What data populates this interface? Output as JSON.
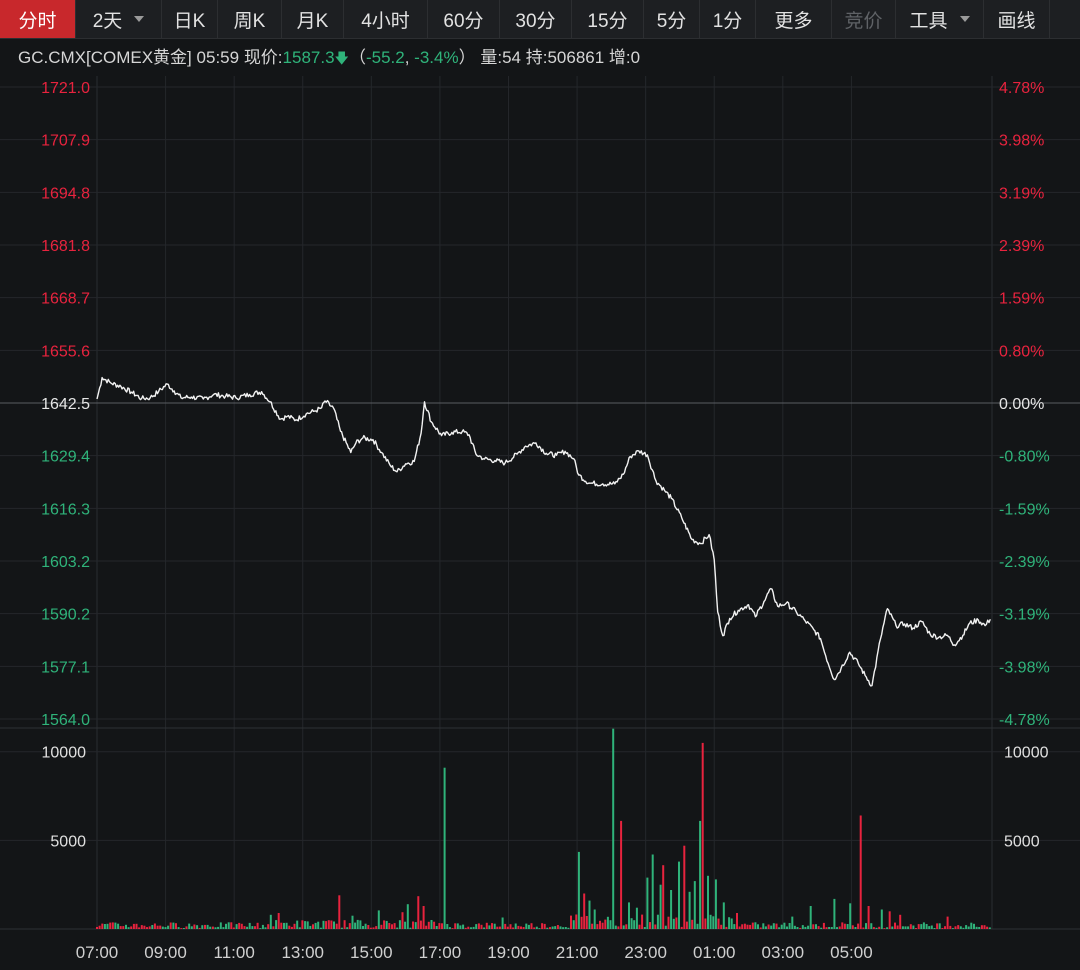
{
  "toolbar": {
    "tabs": [
      {
        "label": "分时",
        "state": "active"
      },
      {
        "label": "2天",
        "state": "dropdown"
      },
      {
        "label": "日K",
        "state": "normal"
      },
      {
        "label": "周K",
        "state": "normal"
      },
      {
        "label": "月K",
        "state": "normal"
      },
      {
        "label": "4小时",
        "state": "normal"
      },
      {
        "label": "60分",
        "state": "normal"
      },
      {
        "label": "30分",
        "state": "normal"
      },
      {
        "label": "15分",
        "state": "normal"
      },
      {
        "label": "5分",
        "state": "normal"
      },
      {
        "label": "1分",
        "state": "normal"
      },
      {
        "label": "更多",
        "state": "normal"
      },
      {
        "label": "竞价",
        "state": "disabled"
      },
      {
        "label": "工具",
        "state": "dropdown"
      },
      {
        "label": "画线",
        "state": "normal"
      }
    ]
  },
  "info": {
    "symbol": "GC.CMX[COMEX黄金]",
    "time": "05:59",
    "price_label": "现价:",
    "price": "1587.3",
    "change_open": "（",
    "change": "-55.2",
    "comma": ",",
    "change_pct": "-3.4%",
    "change_close": "）",
    "volume_label": "量:",
    "volume": "54",
    "hold_label": "持:",
    "hold": "506861",
    "increase_label": "增:",
    "increase": "0"
  },
  "colors": {
    "background": "#131517",
    "grid": "#24272b",
    "price_line": "#f2f2f2",
    "up": "#e8233e",
    "down": "#2fb37a",
    "neutral_label": "#e6e6e6",
    "baseline": "#5a5d62"
  },
  "chart_data": {
    "type": "line",
    "x_ticks": [
      "07:00",
      "09:00",
      "11:00",
      "13:00",
      "15:00",
      "17:00",
      "19:00",
      "21:00",
      "23:00",
      "01:00",
      "03:00",
      "05:00"
    ],
    "x_hours_since_0700": [
      0,
      2,
      4,
      6,
      8,
      10,
      12,
      14,
      16,
      18,
      20,
      22
    ],
    "price_axis": {
      "ticks": [
        "1721.0",
        "1707.9",
        "1694.8",
        "1681.8",
        "1668.7",
        "1655.6",
        "1642.5",
        "1629.4",
        "1616.3",
        "1603.2",
        "1590.2",
        "1577.1",
        "1564.0"
      ],
      "ylim": [
        1564.0,
        1721.0
      ],
      "prev_close": 1642.5
    },
    "pct_axis": {
      "ticks": [
        "4.78%",
        "3.98%",
        "3.19%",
        "2.39%",
        "1.59%",
        "0.80%",
        "0.00%",
        "-0.80%",
        "-1.59%",
        "-2.39%",
        "-3.19%",
        "-3.98%",
        "-4.78%"
      ]
    },
    "volume_axis": {
      "ticks": [
        "10000",
        "5000"
      ],
      "ylim": [
        0,
        11000
      ]
    },
    "series": [
      {
        "points": [
          [
            0.0,
            1643.5
          ],
          [
            0.15,
            1648.8
          ],
          [
            0.4,
            1647.5
          ],
          [
            0.7,
            1646.6
          ],
          [
            1.0,
            1645.2
          ],
          [
            1.3,
            1643.6
          ],
          [
            1.55,
            1643.8
          ],
          [
            1.8,
            1645.4
          ],
          [
            2.05,
            1647.2
          ],
          [
            2.25,
            1645.5
          ],
          [
            2.45,
            1643.8
          ],
          [
            2.75,
            1644.0
          ],
          [
            3.1,
            1643.5
          ],
          [
            3.4,
            1644.6
          ],
          [
            3.75,
            1644.2
          ],
          [
            4.05,
            1643.8
          ],
          [
            4.45,
            1644.6
          ],
          [
            4.8,
            1645.3
          ],
          [
            5.05,
            1642.8
          ],
          [
            5.35,
            1638.5
          ],
          [
            5.55,
            1639.2
          ],
          [
            5.8,
            1638.3
          ],
          [
            6.1,
            1639.8
          ],
          [
            6.35,
            1640.5
          ],
          [
            6.55,
            1641.3
          ],
          [
            6.65,
            1643.0
          ],
          [
            6.9,
            1641.2
          ],
          [
            7.1,
            1635.5
          ],
          [
            7.4,
            1630.2
          ],
          [
            7.55,
            1632.6
          ],
          [
            7.75,
            1633.8
          ],
          [
            8.05,
            1633.4
          ],
          [
            8.3,
            1630.2
          ],
          [
            8.55,
            1627.0
          ],
          [
            8.75,
            1625.4
          ],
          [
            9.0,
            1627.4
          ],
          [
            9.25,
            1628.0
          ],
          [
            9.45,
            1635.0
          ],
          [
            9.55,
            1642.8
          ],
          [
            9.75,
            1637.8
          ],
          [
            10.05,
            1634.4
          ],
          [
            10.35,
            1635.2
          ],
          [
            10.65,
            1635.4
          ],
          [
            10.85,
            1634.6
          ],
          [
            11.05,
            1629.8
          ],
          [
            11.3,
            1628.6
          ],
          [
            11.6,
            1628.2
          ],
          [
            11.9,
            1627.6
          ],
          [
            12.25,
            1629.8
          ],
          [
            12.5,
            1631.8
          ],
          [
            12.8,
            1632.6
          ],
          [
            13.1,
            1630.0
          ],
          [
            13.4,
            1629.5
          ],
          [
            13.65,
            1630.5
          ],
          [
            13.9,
            1628.7
          ],
          [
            14.05,
            1624.6
          ],
          [
            14.35,
            1622.6
          ],
          [
            14.75,
            1622.4
          ],
          [
            15.1,
            1622.4
          ],
          [
            15.35,
            1624.8
          ],
          [
            15.55,
            1629.2
          ],
          [
            15.8,
            1630.6
          ],
          [
            16.05,
            1629.6
          ],
          [
            16.3,
            1623.2
          ],
          [
            16.55,
            1620.8
          ],
          [
            16.75,
            1618.8
          ],
          [
            17.05,
            1614.0
          ],
          [
            17.35,
            1608.6
          ],
          [
            17.6,
            1607.6
          ],
          [
            17.85,
            1609.8
          ],
          [
            18.0,
            1603.6
          ],
          [
            18.1,
            1590.6
          ],
          [
            18.25,
            1584.7
          ],
          [
            18.45,
            1589.0
          ],
          [
            18.7,
            1591.0
          ],
          [
            19.0,
            1592.4
          ],
          [
            19.2,
            1589.4
          ],
          [
            19.45,
            1593.2
          ],
          [
            19.65,
            1596.4
          ],
          [
            19.85,
            1592.0
          ],
          [
            20.1,
            1592.8
          ],
          [
            20.4,
            1590.5
          ],
          [
            20.65,
            1588.4
          ],
          [
            20.9,
            1586.2
          ],
          [
            21.1,
            1584.0
          ],
          [
            21.25,
            1579.7
          ],
          [
            21.5,
            1573.8
          ],
          [
            21.7,
            1576.6
          ],
          [
            21.95,
            1580.6
          ],
          [
            22.2,
            1577.8
          ],
          [
            22.4,
            1574.8
          ],
          [
            22.6,
            1572.3
          ],
          [
            22.85,
            1584.0
          ],
          [
            23.05,
            1591.4
          ],
          [
            23.3,
            1587.2
          ],
          [
            23.55,
            1587.6
          ],
          [
            23.8,
            1586.6
          ],
          [
            24.05,
            1588.2
          ],
          [
            24.3,
            1585.0
          ],
          [
            24.55,
            1584.3
          ],
          [
            24.8,
            1584.8
          ],
          [
            25.0,
            1582.4
          ],
          [
            25.25,
            1584.8
          ],
          [
            25.45,
            1587.8
          ],
          [
            25.7,
            1588.6
          ],
          [
            25.9,
            1587.2
          ],
          [
            26.05,
            1588.8
          ]
        ]
      }
    ],
    "volume": {
      "unit_hours": 0.0768,
      "count": 340,
      "spikes": [
        {
          "h": 5.1,
          "v": 800,
          "c": "down"
        },
        {
          "h": 5.3,
          "v": 900,
          "c": "up"
        },
        {
          "h": 7.1,
          "v": 1900,
          "c": "up"
        },
        {
          "h": 7.45,
          "v": 750,
          "c": "down"
        },
        {
          "h": 8.2,
          "v": 1050,
          "c": "down"
        },
        {
          "h": 8.9,
          "v": 950,
          "c": "up"
        },
        {
          "h": 9.05,
          "v": 1400,
          "c": "down"
        },
        {
          "h": 9.35,
          "v": 1850,
          "c": "up"
        },
        {
          "h": 9.55,
          "v": 1300,
          "c": "up"
        },
        {
          "h": 10.15,
          "v": 9100,
          "c": "down"
        },
        {
          "h": 11.8,
          "v": 650,
          "c": "down"
        },
        {
          "h": 14.05,
          "v": 4350,
          "c": "down"
        },
        {
          "h": 14.2,
          "v": 2000,
          "c": "up"
        },
        {
          "h": 14.35,
          "v": 1600,
          "c": "down"
        },
        {
          "h": 14.55,
          "v": 1100,
          "c": "down"
        },
        {
          "h": 15.05,
          "v": 11300,
          "c": "down"
        },
        {
          "h": 15.3,
          "v": 6100,
          "c": "up"
        },
        {
          "h": 15.55,
          "v": 1500,
          "c": "down"
        },
        {
          "h": 15.75,
          "v": 1200,
          "c": "down"
        },
        {
          "h": 16.05,
          "v": 2900,
          "c": "down"
        },
        {
          "h": 16.2,
          "v": 4200,
          "c": "down"
        },
        {
          "h": 16.4,
          "v": 2500,
          "c": "down"
        },
        {
          "h": 16.55,
          "v": 3600,
          "c": "up"
        },
        {
          "h": 16.75,
          "v": 2200,
          "c": "down"
        },
        {
          "h": 16.95,
          "v": 3800,
          "c": "down"
        },
        {
          "h": 17.1,
          "v": 4700,
          "c": "up"
        },
        {
          "h": 17.3,
          "v": 2100,
          "c": "down"
        },
        {
          "h": 17.4,
          "v": 2700,
          "c": "down"
        },
        {
          "h": 17.55,
          "v": 6100,
          "c": "down"
        },
        {
          "h": 17.68,
          "v": 10500,
          "c": "up"
        },
        {
          "h": 17.82,
          "v": 3000,
          "c": "down"
        },
        {
          "h": 18.05,
          "v": 2800,
          "c": "down"
        },
        {
          "h": 18.3,
          "v": 1500,
          "c": "down"
        },
        {
          "h": 18.7,
          "v": 900,
          "c": "up"
        },
        {
          "h": 20.25,
          "v": 700,
          "c": "down"
        },
        {
          "h": 20.85,
          "v": 1300,
          "c": "down"
        },
        {
          "h": 21.5,
          "v": 1700,
          "c": "down"
        },
        {
          "h": 22.0,
          "v": 1450,
          "c": "down"
        },
        {
          "h": 22.3,
          "v": 6400,
          "c": "up"
        },
        {
          "h": 22.5,
          "v": 1300,
          "c": "up"
        },
        {
          "h": 22.85,
          "v": 1100,
          "c": "down"
        },
        {
          "h": 23.1,
          "v": 1000,
          "c": "up"
        },
        {
          "h": 23.4,
          "v": 800,
          "c": "up"
        },
        {
          "h": 24.8,
          "v": 700,
          "c": "up"
        }
      ]
    }
  }
}
